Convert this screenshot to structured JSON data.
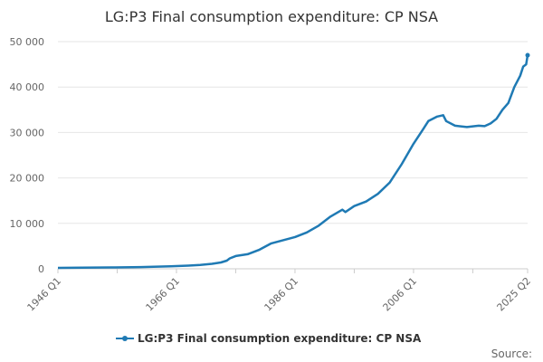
{
  "chart_data": {
    "type": "line",
    "title": "LG:P3 Final consumption expenditure: CP NSA",
    "xlabel": "",
    "ylabel": "",
    "x_ticks": [
      "1946 Q1",
      "1966 Q1",
      "1986 Q1",
      "2006 Q1",
      "2025 Q2"
    ],
    "y_ticks": [
      "0",
      "10 000",
      "20 000",
      "30 000",
      "40 000",
      "50 000"
    ],
    "ylim": [
      0,
      50000
    ],
    "xlim": [
      1946.0,
      2025.25
    ],
    "grid": true,
    "legend": "bottom",
    "series": [
      {
        "name": "LG:P3 Final consumption expenditure: CP NSA",
        "color": "#1f7ab4",
        "points": [
          [
            1946.0,
            200
          ],
          [
            1950.0,
            230
          ],
          [
            1955.0,
            290
          ],
          [
            1960.0,
            380
          ],
          [
            1965.0,
            540
          ],
          [
            1968.0,
            700
          ],
          [
            1970.0,
            850
          ],
          [
            1972.0,
            1100
          ],
          [
            1973.5,
            1400
          ],
          [
            1974.5,
            1800
          ],
          [
            1975.0,
            2300
          ],
          [
            1976.0,
            2800
          ],
          [
            1978.0,
            3200
          ],
          [
            1980.0,
            4200
          ],
          [
            1982.0,
            5600
          ],
          [
            1984.0,
            6300
          ],
          [
            1986.0,
            7000
          ],
          [
            1988.0,
            8000
          ],
          [
            1990.0,
            9500
          ],
          [
            1992.0,
            11500
          ],
          [
            1994.0,
            13000
          ],
          [
            1994.5,
            12500
          ],
          [
            1996.0,
            13800
          ],
          [
            1998.0,
            14800
          ],
          [
            2000.0,
            16500
          ],
          [
            2002.0,
            19000
          ],
          [
            2004.0,
            23000
          ],
          [
            2006.0,
            27500
          ],
          [
            2007.5,
            30500
          ],
          [
            2008.5,
            32500
          ],
          [
            2010.0,
            33500
          ],
          [
            2011.0,
            33800
          ],
          [
            2011.5,
            32500
          ],
          [
            2013.0,
            31500
          ],
          [
            2015.0,
            31200
          ],
          [
            2017.0,
            31500
          ],
          [
            2018.0,
            31400
          ],
          [
            2019.0,
            32000
          ],
          [
            2020.0,
            33000
          ],
          [
            2021.0,
            35000
          ],
          [
            2022.0,
            36500
          ],
          [
            2023.0,
            40000
          ],
          [
            2024.0,
            42500
          ],
          [
            2024.5,
            44500
          ],
          [
            2025.0,
            45000
          ],
          [
            2025.25,
            47000
          ]
        ]
      }
    ],
    "source_label": "Source:"
  }
}
